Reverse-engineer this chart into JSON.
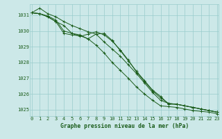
{
  "bg_color": "#cce8e8",
  "grid_color": "#99cccc",
  "line_color": "#1a5c1a",
  "title": "Graphe pression niveau de la mer (hPa)",
  "ylim": [
    1024.6,
    1031.7
  ],
  "xlim": [
    -0.2,
    23.2
  ],
  "yticks": [
    1025,
    1026,
    1027,
    1028,
    1029,
    1030,
    1031
  ],
  "xticks": [
    0,
    1,
    2,
    3,
    4,
    5,
    6,
    7,
    8,
    9,
    10,
    11,
    12,
    13,
    14,
    15,
    16,
    17,
    18,
    19,
    20,
    21,
    22,
    23
  ],
  "series": [
    [
      1031.15,
      1031.45,
      1031.1,
      1030.9,
      1030.6,
      1030.35,
      1030.15,
      1029.95,
      1029.8,
      1029.3,
      1028.85,
      1028.4,
      1027.85,
      1027.3,
      1026.7,
      1026.1,
      1025.6,
      1025.4,
      1025.35,
      1025.25,
      1025.15,
      1025.05,
      1024.95,
      1024.85
    ],
    [
      1031.15,
      1031.1,
      1030.95,
      1030.7,
      1030.0,
      1029.85,
      1029.75,
      1029.5,
      1029.1,
      1028.6,
      1028.0,
      1027.5,
      1027.0,
      1026.45,
      1026.0,
      1025.6,
      1025.25,
      1025.2,
      1025.15,
      1025.05,
      1024.95,
      1024.9,
      1024.85,
      1024.75
    ],
    [
      1031.15,
      1031.1,
      1030.9,
      1030.6,
      1029.85,
      1029.75,
      1029.7,
      1029.5,
      1029.8,
      1029.85,
      1029.4,
      1028.75,
      1028.1,
      1027.45,
      1026.85,
      1026.25,
      1025.85,
      1025.35,
      1025.35,
      1025.25,
      1025.15,
      1025.05,
      1024.95,
      1024.85
    ],
    [
      1031.15,
      1031.1,
      1030.9,
      1030.6,
      1030.35,
      1029.85,
      1029.65,
      1029.8,
      1029.95,
      1029.75,
      1029.35,
      1028.8,
      1028.15,
      1027.4,
      1026.8,
      1026.2,
      1025.75,
      1025.4,
      1025.35,
      1025.25,
      1025.15,
      1025.05,
      1024.95,
      1024.85
    ]
  ]
}
